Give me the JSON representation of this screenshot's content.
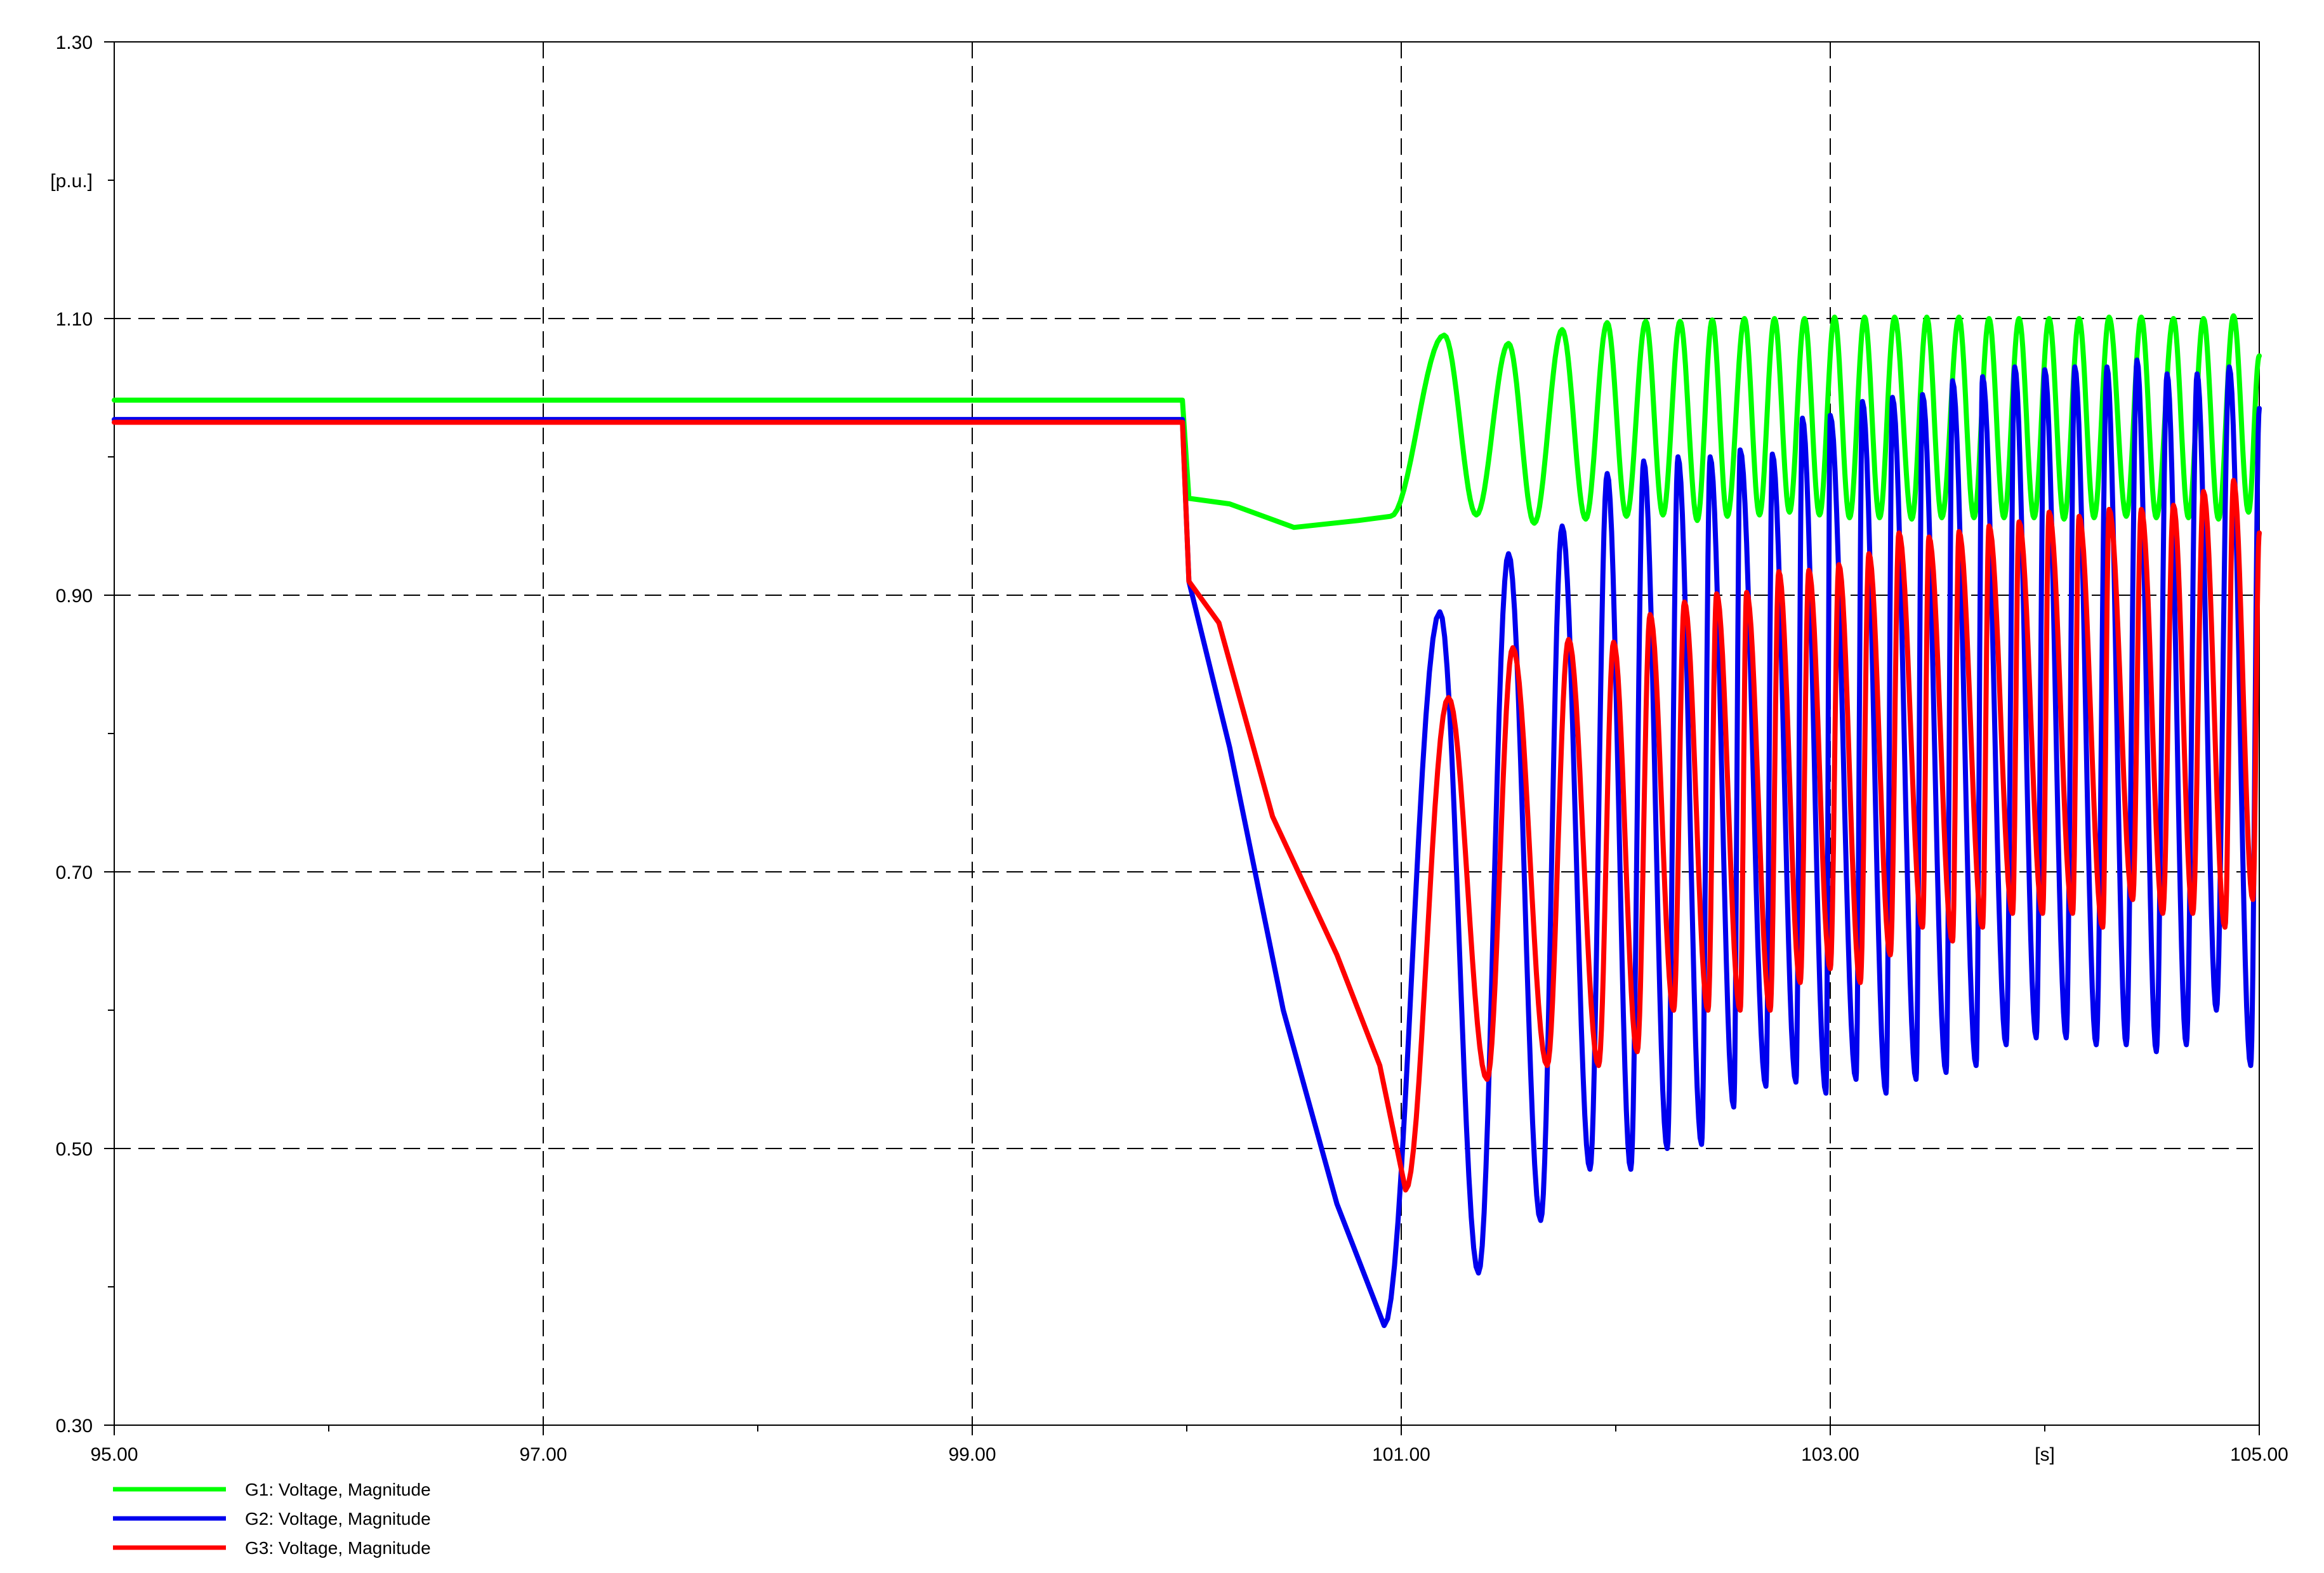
{
  "chart_data": {
    "type": "line",
    "title": "",
    "xlabel": "",
    "ylabel": "",
    "x_unit_label": "[s]",
    "y_unit_label": "[p.u.]",
    "xlim": [
      95,
      105
    ],
    "ylim": [
      0.3,
      1.3
    ],
    "x_ticks": [
      95,
      97,
      99,
      101,
      103,
      105
    ],
    "x_tick_labels": [
      "95.00",
      "97.00",
      "99.00",
      "101.00",
      "103.00",
      "105.00"
    ],
    "x_unit_position": 104,
    "y_ticks": [
      0.3,
      0.5,
      0.7,
      0.9,
      1.1,
      1.3
    ],
    "y_tick_labels": [
      "0.30",
      "0.50",
      "0.70",
      "0.90",
      "1.10",
      "1.30"
    ],
    "y_unit_position": 1.2,
    "x_minor_ticks": [
      96,
      98,
      100,
      102,
      104
    ],
    "y_minor_ticks": [
      0.4,
      0.6,
      0.8,
      1.0,
      1.2
    ],
    "grid": true,
    "grid_style": "dashed",
    "legend_position": "bottom-left",
    "series": [
      {
        "name": "G1: Voltage, Magnitude",
        "color": "#00ff00",
        "pre_fault": {
          "x": [
            95,
            99.98
          ],
          "y": 1.041
        },
        "transition": {
          "x": [
            99.98,
            100.01,
            100.2,
            100.5,
            100.8,
            100.95
          ],
          "y": [
            1.041,
            0.97,
            0.966,
            0.949,
            0.954,
            0.957
          ]
        },
        "oscillation": {
          "crest_times": [
            101.2,
            101.5,
            101.75,
            101.96,
            102.14,
            102.3,
            102.45,
            102.6,
            102.74,
            102.88,
            103.02,
            103.16,
            103.3,
            103.45,
            103.6,
            103.74,
            103.88,
            104.02,
            104.16,
            104.3,
            104.45,
            104.6,
            104.74,
            104.88,
            105.0
          ],
          "crest_values": [
            1.088,
            1.082,
            1.092,
            1.097,
            1.098,
            1.098,
            1.099,
            1.1,
            1.1,
            1.1,
            1.101,
            1.101,
            1.101,
            1.101,
            1.101,
            1.1,
            1.1,
            1.1,
            1.1,
            1.101,
            1.101,
            1.1,
            1.1,
            1.102,
            1.073
          ],
          "trough_times": [
            101.35,
            101.62,
            101.86,
            102.05,
            102.22,
            102.38,
            102.52,
            102.67,
            102.81,
            102.95,
            103.09,
            103.23,
            103.38,
            103.52,
            103.67,
            103.81,
            103.95,
            104.09,
            104.23,
            104.38,
            104.52,
            104.67,
            104.81,
            104.95
          ],
          "trough_values": [
            0.958,
            0.952,
            0.955,
            0.957,
            0.958,
            0.954,
            0.957,
            0.958,
            0.96,
            0.958,
            0.956,
            0.956,
            0.955,
            0.956,
            0.956,
            0.956,
            0.956,
            0.955,
            0.956,
            0.957,
            0.956,
            0.956,
            0.955,
            0.96
          ]
        }
      },
      {
        "name": "G2: Voltage, Magnitude",
        "color": "#0000ee",
        "pre_fault": {
          "x": [
            95,
            99.98
          ],
          "y": 1.027
        },
        "transition": {
          "x": [
            99.98,
            100.01,
            100.2,
            100.45,
            100.7,
            100.92
          ],
          "y": [
            1.027,
            0.91,
            0.79,
            0.6,
            0.46,
            0.372
          ]
        },
        "oscillation": {
          "crest_times": [
            101.18,
            101.5,
            101.75,
            101.96,
            102.13,
            102.29,
            102.44,
            102.58,
            102.73,
            102.87,
            103.0,
            103.15,
            103.29,
            103.43,
            103.57,
            103.71,
            103.86,
            104.0,
            104.14,
            104.29,
            104.43,
            104.57,
            104.71,
            104.86,
            105.0
          ],
          "crest_values": [
            0.888,
            0.93,
            0.95,
            0.988,
            0.997,
            1.0,
            1.0,
            1.005,
            1.002,
            1.028,
            1.03,
            1.04,
            1.043,
            1.045,
            1.055,
            1.058,
            1.065,
            1.063,
            1.065,
            1.065,
            1.07,
            1.06,
            1.06,
            1.065,
            1.035
          ],
          "trough_times": [
            101.36,
            101.65,
            101.88,
            102.07,
            102.24,
            102.4,
            102.55,
            102.7,
            102.84,
            102.98,
            103.12,
            103.26,
            103.4,
            103.54,
            103.68,
            103.82,
            103.96,
            104.1,
            104.24,
            104.38,
            104.52,
            104.66,
            104.8,
            104.96
          ],
          "trough_values": [
            0.41,
            0.448,
            0.485,
            0.485,
            0.5,
            0.503,
            0.53,
            0.545,
            0.548,
            0.54,
            0.55,
            0.54,
            0.55,
            0.555,
            0.56,
            0.575,
            0.58,
            0.58,
            0.575,
            0.575,
            0.57,
            0.575,
            0.6,
            0.56
          ]
        }
      },
      {
        "name": "G3: Voltage, Magnitude",
        "color": "#ff0000",
        "pre_fault": {
          "x": [
            95,
            99.98
          ],
          "y": 1.025
        },
        "transition": {
          "x": [
            99.98,
            100.01,
            100.15,
            100.4,
            100.7,
            100.9,
            101.02
          ],
          "y": [
            1.025,
            0.91,
            0.88,
            0.74,
            0.64,
            0.56,
            0.47
          ]
        },
        "oscillation": {
          "crest_times": [
            101.22,
            101.52,
            101.78,
            101.99,
            102.16,
            102.32,
            102.47,
            102.61,
            102.76,
            102.9,
            103.04,
            103.18,
            103.32,
            103.46,
            103.6,
            103.74,
            103.88,
            104.02,
            104.16,
            104.3,
            104.45,
            104.6,
            104.74,
            104.88,
            105.0
          ],
          "crest_values": [
            0.826,
            0.862,
            0.868,
            0.866,
            0.886,
            0.895,
            0.901,
            0.902,
            0.917,
            0.918,
            0.922,
            0.93,
            0.945,
            0.942,
            0.946,
            0.95,
            0.953,
            0.96,
            0.957,
            0.962,
            0.962,
            0.965,
            0.975,
            0.983,
            0.945
          ]
        }
      }
    ],
    "g3_trough_times": [
      101.4,
      101.68,
      101.92,
      102.1,
      102.27,
      102.43,
      102.58,
      102.72,
      102.86,
      103.0,
      103.14,
      103.28,
      103.43,
      103.57,
      103.71,
      103.85,
      103.99,
      104.13,
      104.27,
      104.41,
      104.55,
      104.69,
      104.84,
      104.97
    ],
    "g3_trough_values": [
      0.55,
      0.56,
      0.56,
      0.57,
      0.6,
      0.6,
      0.6,
      0.6,
      0.62,
      0.63,
      0.62,
      0.64,
      0.66,
      0.65,
      0.66,
      0.67,
      0.67,
      0.67,
      0.66,
      0.68,
      0.67,
      0.67,
      0.66,
      0.68
    ]
  }
}
